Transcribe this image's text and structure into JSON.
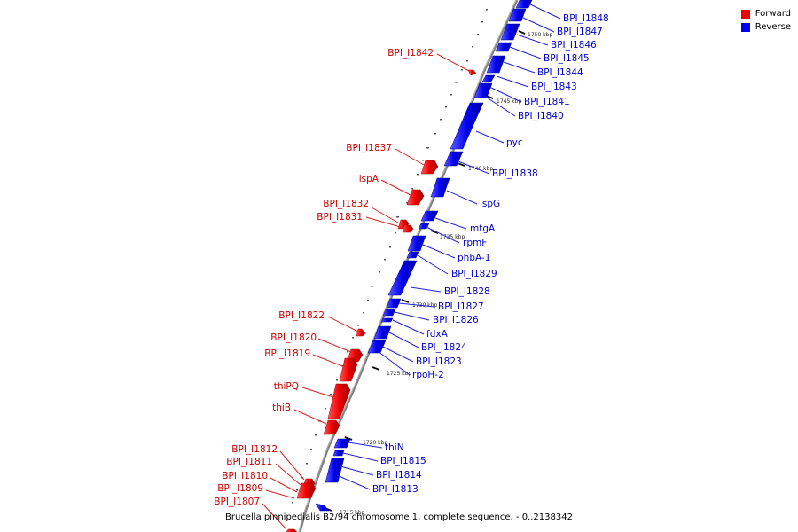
{
  "caption": "Brucella pinnipedialis B2/94 chromosome 1, complete sequence. - 0..2138342",
  "legend": [
    {
      "label": "Forward",
      "color": "#ee0000"
    },
    {
      "label": "Reverse",
      "color": "#0000ee"
    }
  ],
  "colors": {
    "forward": "#ee0000",
    "reverse": "#0000ee",
    "forward_label": "#cc0000",
    "reverse_label": "#0000cc",
    "backbone": "#808080"
  },
  "ticks": [
    {
      "label": "1750 kbp"
    },
    {
      "label": "1745 kbp"
    },
    {
      "label": "1740 kbp"
    },
    {
      "label": "1735 kbp"
    },
    {
      "label": "1730 kbp"
    },
    {
      "label": "1725 kbp"
    },
    {
      "label": "1720 kbp"
    },
    {
      "label": "1715 kbp"
    }
  ],
  "forward_labels": [
    "BPI_I1842",
    "BPI_I1837",
    "ispA",
    "BPI_I1832",
    "BPI_I1831",
    "BPI_I1822",
    "BPI_I1820",
    "BPI_I1819",
    "thiPQ",
    "thiB",
    "BPI_I1812",
    "BPI_I1811",
    "BPI_I1810",
    "BPI_I1809",
    "BPI_I1807"
  ],
  "reverse_labels": [
    "BPI_I1848",
    "BPI_I1847",
    "BPI_I1846",
    "BPI_I1845",
    "BPI_I1844",
    "BPI_I1843",
    "BPI_I1841",
    "BPI_I1840",
    "pyc",
    "BPI_I1838",
    "ispG",
    "mtgA",
    "rpmF",
    "phbA-1",
    "BPI_I1829",
    "BPI_I1828",
    "BPI_I1827",
    "BPI_I1826",
    "fdxA",
    "BPI_I1824",
    "BPI_I1823",
    "rpoH-2",
    "thiN",
    "BPI_I1815",
    "BPI_I1814",
    "BPI_I1813"
  ]
}
